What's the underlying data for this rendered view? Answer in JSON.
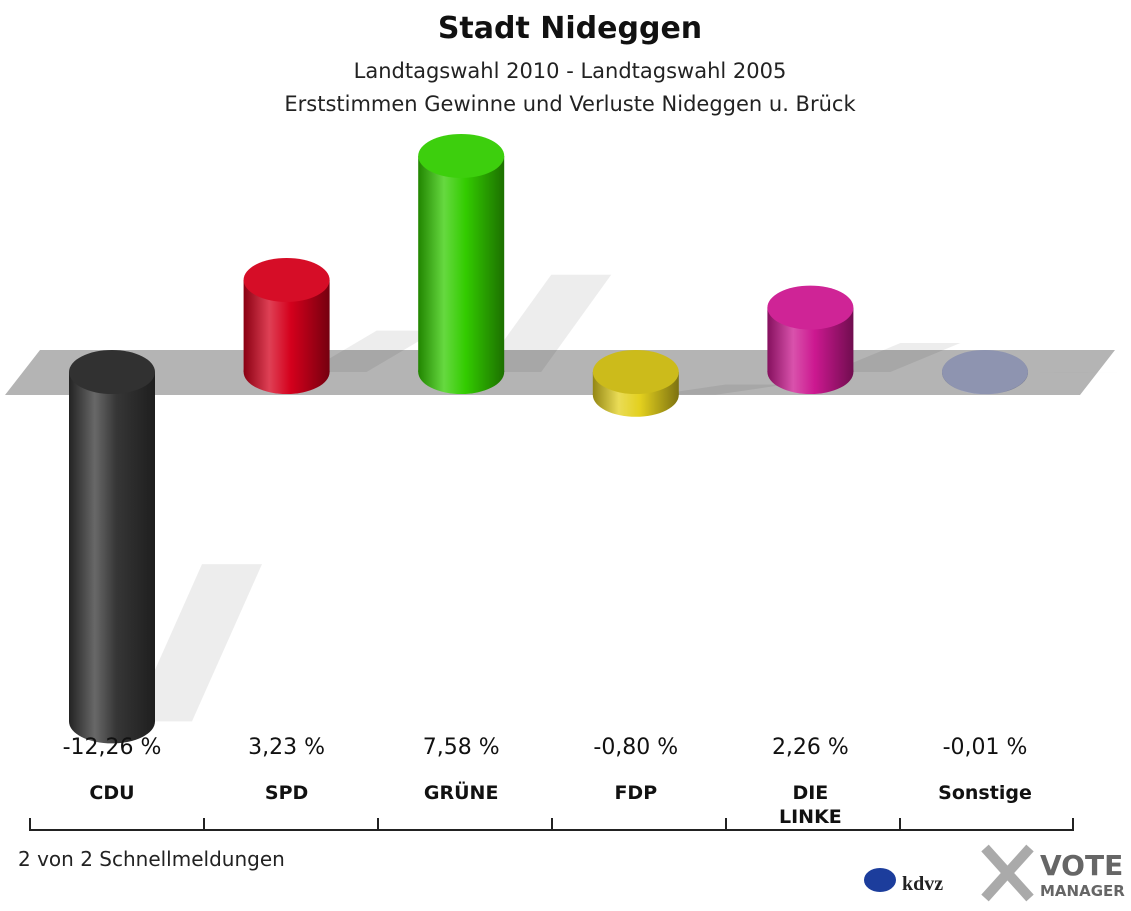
{
  "chart_data": {
    "type": "bar",
    "title": "Stadt Nideggen",
    "subtitle": [
      "Landtagswahl 2010 - Landtagswahl 2005",
      "Erststimmen Gewinne und Verluste Nideggen u. Brück"
    ],
    "categories": [
      "CDU",
      "SPD",
      "GRÜNE",
      "FDP",
      "DIE\nLINKE",
      "Sonstige"
    ],
    "values": [
      -12.26,
      3.23,
      7.58,
      -0.8,
      2.26,
      -0.01
    ],
    "value_labels": [
      "-12,26 %",
      "3,23 %",
      "7,58 %",
      "-0,80 %",
      "2,26 %",
      "-0,01 %"
    ],
    "colors": [
      "#363636",
      "#d4001c",
      "#33cc00",
      "#e3d01e",
      "#cc1890",
      "#9ea4c4"
    ]
  },
  "footer": "2 von 2 Schnellmeldungen",
  "logo": {
    "kdvz": "kdvz",
    "vote": "VOTE",
    "manager": "MANAGER"
  }
}
